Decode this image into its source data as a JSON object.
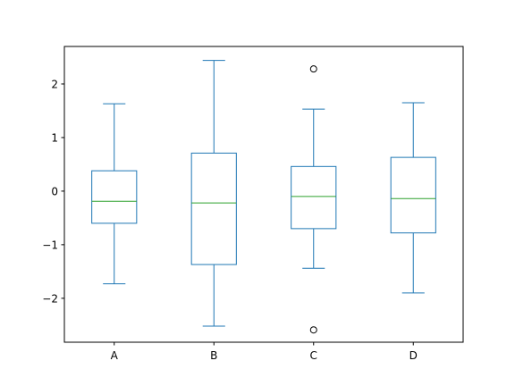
{
  "chart_data": {
    "type": "boxplot",
    "categories": [
      "A",
      "B",
      "C",
      "D"
    ],
    "boxes": [
      {
        "whisker_low": -1.73,
        "q1": -0.6,
        "median": -0.19,
        "q3": 0.38,
        "whisker_high": 1.63,
        "outliers": []
      },
      {
        "whisker_low": -2.52,
        "q1": -1.37,
        "median": -0.22,
        "q3": 0.71,
        "whisker_high": 2.44,
        "outliers": []
      },
      {
        "whisker_low": -1.44,
        "q1": -0.7,
        "median": -0.1,
        "q3": 0.46,
        "whisker_high": 1.53,
        "outliers": [
          2.28,
          -2.59
        ]
      },
      {
        "whisker_low": -1.9,
        "q1": -0.78,
        "median": -0.14,
        "q3": 0.63,
        "whisker_high": 1.65,
        "outliers": []
      }
    ],
    "ylim": [
      -2.82,
      2.7
    ],
    "yticks": [
      -2,
      -1,
      0,
      1,
      2
    ],
    "ytick_labels": [
      "−2",
      "−1",
      "0",
      "1",
      "2"
    ],
    "grid": false,
    "colors": {
      "box": "#1f77b4",
      "median": "#2ca02c",
      "axes": "#000000"
    }
  }
}
